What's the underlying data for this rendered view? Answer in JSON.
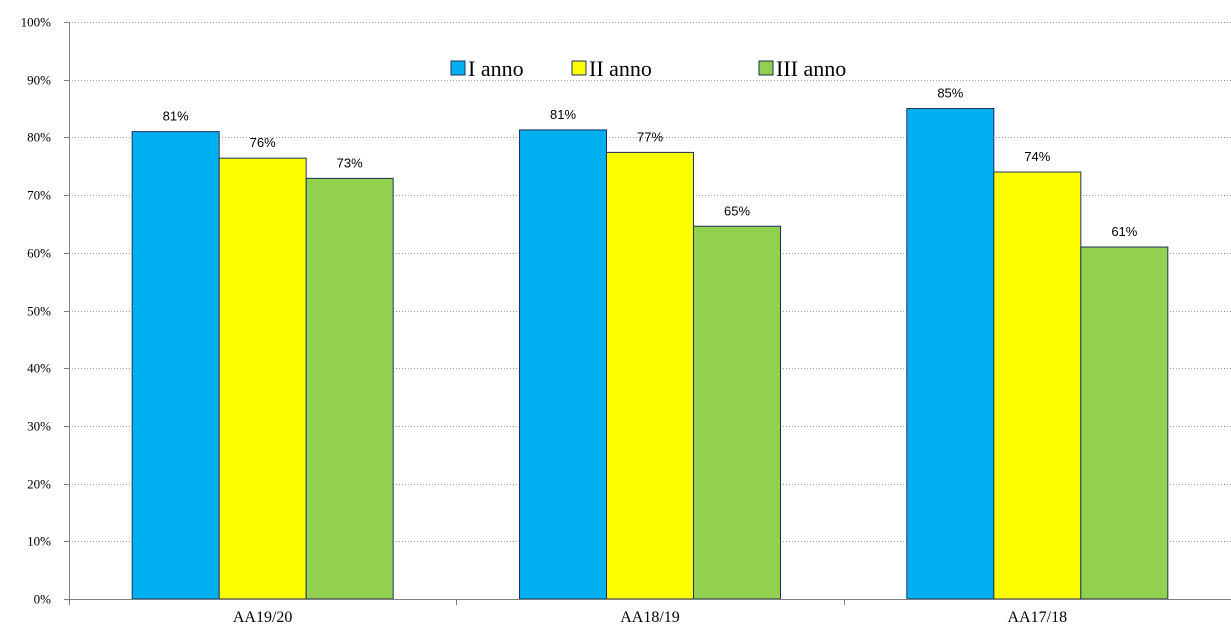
{
  "chart_data": {
    "type": "bar",
    "categories": [
      "AA19/20",
      "AA18/19",
      "AA17/18"
    ],
    "series": [
      {
        "name": "I anno",
        "color": "#00B0F0",
        "values": [
          81,
          81.3,
          85
        ],
        "labels": [
          "81%",
          "81%",
          "85%"
        ]
      },
      {
        "name": "II anno",
        "color": "#FFFF00",
        "values": [
          76.4,
          77.4,
          74
        ],
        "labels": [
          "76%",
          "77%",
          "74%"
        ]
      },
      {
        "name": "III anno",
        "color": "#92D050",
        "values": [
          72.9,
          64.6,
          61
        ],
        "labels": [
          "73%",
          "65%",
          "61%"
        ]
      }
    ],
    "ylim": [
      0,
      100
    ],
    "yticks": [
      "0%",
      "10%",
      "20%",
      "30%",
      "40%",
      "50%",
      "60%",
      "70%",
      "80%",
      "90%",
      "100%"
    ],
    "grid": true,
    "legend_position": "top-center"
  }
}
